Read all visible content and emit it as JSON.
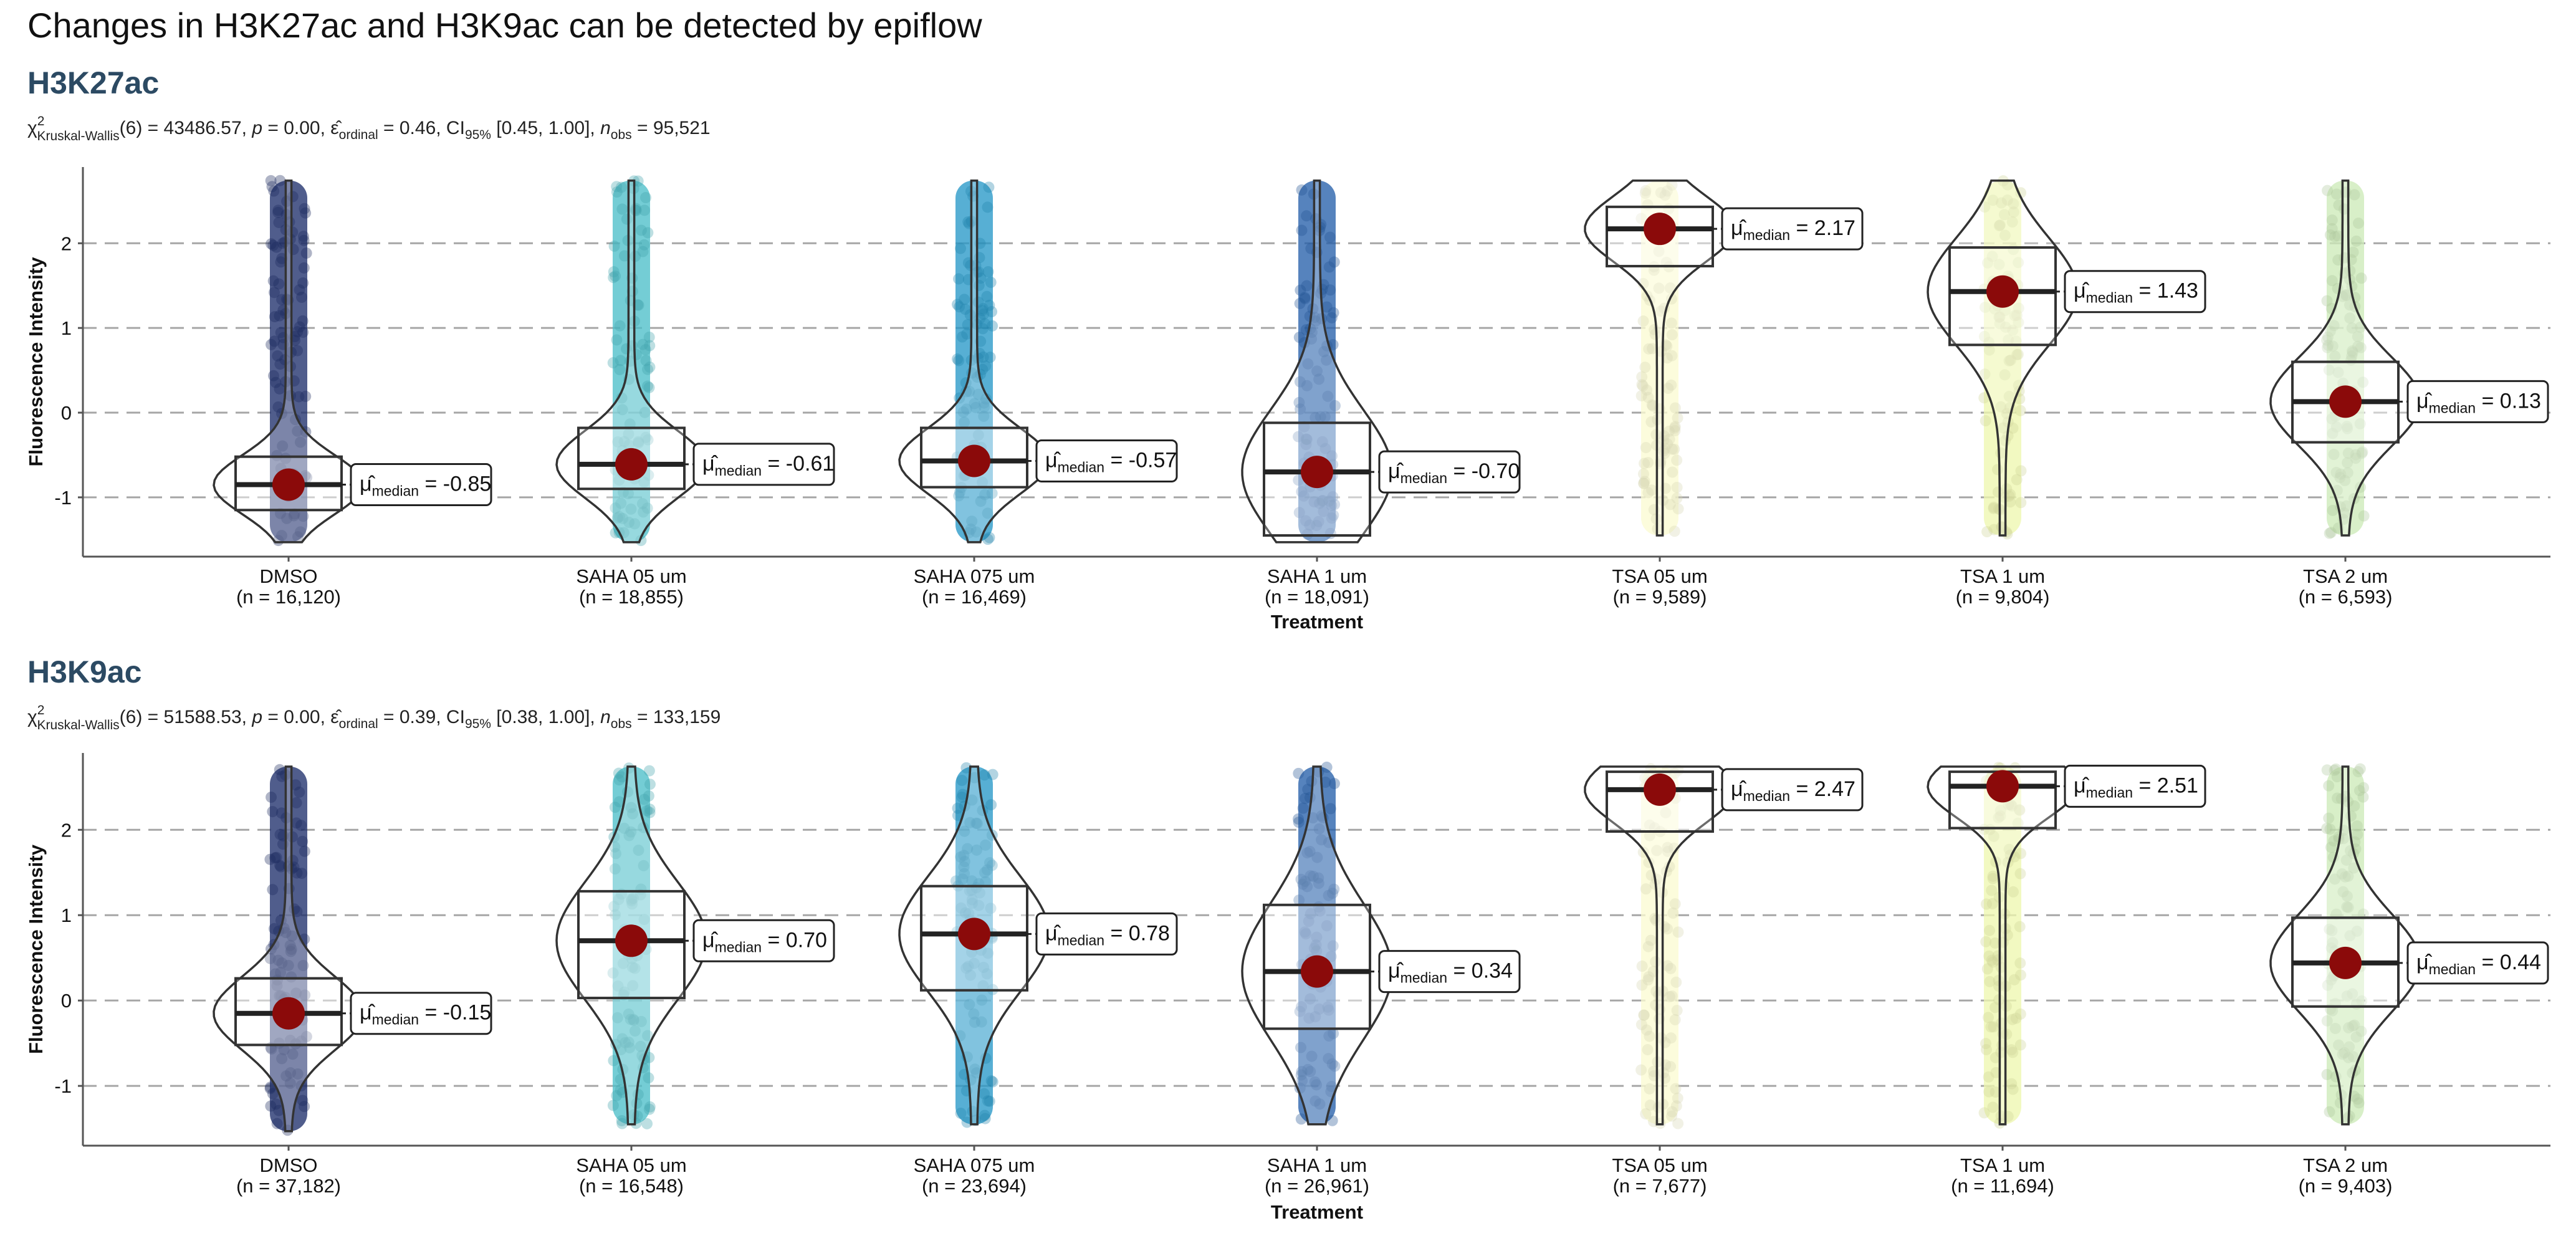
{
  "figure_title": "Changes in H3K27ac and H3K9ac can be detected by epiflow",
  "chart_data": [
    {
      "type": "violin",
      "title": "H3K27ac",
      "stats": {
        "chi": "χ",
        "sup2": "2",
        "test": "Kruskal-Wallis",
        "df_text": "(6) = 43486.57, ",
        "p_sym": "p",
        "p_text": " = 0.00, ",
        "eps": "ε̂",
        "eps_sub": "ordinal",
        "eps_text": " = 0.46, CI",
        "ci_sub": "95%",
        "ci_text": " [0.45, 1.00], ",
        "n_sym": "n",
        "n_sub": "obs",
        "n_text": " = 95,521"
      },
      "xlabel": "Treatment",
      "ylabel": "Fluorescence Intensity",
      "ylim": [
        -1.7,
        2.9
      ],
      "yticks": [
        -1,
        0,
        1,
        2
      ],
      "grid": "horizontal dashed",
      "categories": [
        "DMSO",
        "SAHA 05 um",
        "SAHA 075 um",
        "SAHA 1 um",
        "TSA 05 um",
        "TSA 1 um",
        "TSA 2 um"
      ],
      "n_labels": [
        "(n = 16,120)",
        "(n = 18,855)",
        "(n = 16,469)",
        "(n = 18,091)",
        "(n = 9,589)",
        "(n = 9,804)",
        "(n = 6,593)"
      ],
      "colors": [
        "#1f2f6b",
        "#4dbfc9",
        "#2898c8",
        "#2760aa",
        "#fbfbd2",
        "#eef7b0",
        "#cdeab8"
      ],
      "median_label_prefix": "μ̂",
      "median_label_sub": "median",
      "medians": [
        -0.85,
        -0.61,
        -0.57,
        -0.7,
        2.17,
        1.43,
        0.13
      ],
      "median_labels": [
        "-0.85",
        "-0.61",
        "-0.57",
        "-0.70",
        "2.17",
        "1.43",
        "0.13"
      ],
      "box": [
        {
          "q1": -1.15,
          "median": -0.85,
          "q3": -0.52
        },
        {
          "q1": -0.9,
          "median": -0.61,
          "q3": -0.18
        },
        {
          "q1": -0.88,
          "median": -0.57,
          "q3": -0.18
        },
        {
          "q1": -1.45,
          "median": -0.7,
          "q3": -0.12
        },
        {
          "q1": 1.73,
          "median": 2.17,
          "q3": 2.43
        },
        {
          "q1": 0.8,
          "median": 1.43,
          "q3": 1.95
        },
        {
          "q1": -0.35,
          "median": 0.13,
          "q3": 0.6
        }
      ],
      "data_range": [
        {
          "min": -1.53,
          "max": 2.74
        },
        {
          "min": -1.53,
          "max": 2.74
        },
        {
          "min": -1.53,
          "max": 2.74
        },
        {
          "min": -1.53,
          "max": 2.74
        },
        {
          "min": -1.45,
          "max": 2.74
        },
        {
          "min": -1.45,
          "max": 2.74
        },
        {
          "min": -1.45,
          "max": 2.74
        }
      ]
    },
    {
      "type": "violin",
      "title": "H3K9ac",
      "stats": {
        "chi": "χ",
        "sup2": "2",
        "test": "Kruskal-Wallis",
        "df_text": "(6) = 51588.53, ",
        "p_sym": "p",
        "p_text": " = 0.00, ",
        "eps": "ε̂",
        "eps_sub": "ordinal",
        "eps_text": " = 0.39, CI",
        "ci_sub": "95%",
        "ci_text": " [0.38, 1.00], ",
        "n_sym": "n",
        "n_sub": "obs",
        "n_text": " = 133,159"
      },
      "xlabel": "Treatment",
      "ylabel": "Fluorescence Intensity",
      "ylim": [
        -1.7,
        2.9
      ],
      "yticks": [
        -1,
        0,
        1,
        2
      ],
      "grid": "horizontal dashed",
      "categories": [
        "DMSO",
        "SAHA 05 um",
        "SAHA 075 um",
        "SAHA 1 um",
        "TSA 05 um",
        "TSA 1 um",
        "TSA 2 um"
      ],
      "n_labels": [
        "(n = 37,182)",
        "(n = 16,548)",
        "(n = 23,694)",
        "(n = 26,961)",
        "(n = 7,677)",
        "(n = 11,694)",
        "(n = 9,403)"
      ],
      "colors": [
        "#1f2f6b",
        "#4dbfc9",
        "#2898c8",
        "#2760aa",
        "#fbfbd2",
        "#eef7b0",
        "#cdeab8"
      ],
      "median_label_prefix": "μ̂",
      "median_label_sub": "median",
      "medians": [
        -0.15,
        0.7,
        0.78,
        0.34,
        2.47,
        2.51,
        0.44
      ],
      "median_labels": [
        "-0.15",
        "0.70",
        "0.78",
        "0.34",
        "2.47",
        "2.51",
        "0.44"
      ],
      "box": [
        {
          "q1": -0.52,
          "median": -0.15,
          "q3": 0.26
        },
        {
          "q1": 0.03,
          "median": 0.7,
          "q3": 1.28
        },
        {
          "q1": 0.12,
          "median": 0.78,
          "q3": 1.34
        },
        {
          "q1": -0.33,
          "median": 0.34,
          "q3": 1.12
        },
        {
          "q1": 1.98,
          "median": 2.47,
          "q3": 2.68
        },
        {
          "q1": 2.02,
          "median": 2.51,
          "q3": 2.68
        },
        {
          "q1": -0.07,
          "median": 0.44,
          "q3": 0.97
        }
      ],
      "data_range": [
        {
          "min": -1.53,
          "max": 2.74
        },
        {
          "min": -1.45,
          "max": 2.74
        },
        {
          "min": -1.45,
          "max": 2.74
        },
        {
          "min": -1.45,
          "max": 2.74
        },
        {
          "min": -1.45,
          "max": 2.74
        },
        {
          "min": -1.45,
          "max": 2.74
        },
        {
          "min": -1.45,
          "max": 2.74
        }
      ]
    }
  ]
}
